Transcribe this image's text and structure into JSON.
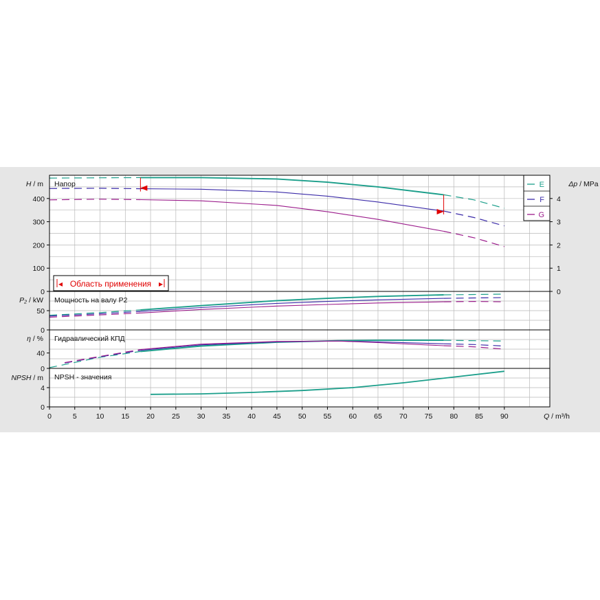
{
  "colors": {
    "E": "#1a9e8a",
    "F": "#3a2aa8",
    "G": "#9a1a8a",
    "marker": "#e00000",
    "grid": "#b8b8b8",
    "background": "#e6e6e6",
    "plot": "#ffffff"
  },
  "labels": {
    "head_axis_italic": "H",
    "head_axis_unit": " / m",
    "dp_axis_italic": "Δp",
    "dp_axis_unit": " / MPa",
    "power_axis_italic": "P₂",
    "power_axis_unit": " / kW",
    "eff_axis_italic": "η",
    "eff_axis_unit": " / %",
    "npsh_axis_italic": "NPSH",
    "npsh_axis_unit": " / m",
    "q_axis_italic": "Q",
    "q_axis_unit": " / m³/h",
    "head_title": "Напор",
    "power_title": "Мощность на валу P2",
    "eff_title": "Гидравлический КПД",
    "npsh_title": "NPSH - значения",
    "range_text": "Область применения",
    "range_left_arrow": "◂",
    "range_right_arrow": "▸"
  },
  "legend": [
    {
      "key": "E",
      "label": "E"
    },
    {
      "key": "F",
      "label": "F"
    },
    {
      "key": "G",
      "label": "G"
    }
  ],
  "chart_data": [
    {
      "type": "line",
      "title": "Напор",
      "ylabel": "H / m",
      "y2label": "Δp / MPa",
      "xlabel": "Q / m³/h",
      "xlim": [
        0,
        99
      ],
      "ylim": [
        0,
        500
      ],
      "y2lim": [
        0,
        5
      ],
      "xticks": [
        0,
        5,
        10,
        15,
        20,
        25,
        30,
        35,
        40,
        45,
        50,
        55,
        60,
        65,
        70,
        75,
        80,
        85,
        90
      ],
      "yticks": [
        0,
        100,
        200,
        300,
        400
      ],
      "yticklabels": [
        "0",
        "100",
        "200",
        "300",
        "400"
      ],
      "y2ticks": [
        0,
        1,
        2,
        3,
        4
      ],
      "y2ticklabels": [
        "0",
        "1",
        "2",
        "3",
        "4"
      ],
      "operating_range": [
        18,
        78
      ],
      "series": [
        {
          "name": "E",
          "key": "E",
          "x": [
            0,
            10,
            18,
            30,
            45,
            55,
            65,
            78,
            84,
            90
          ],
          "y": [
            488,
            489,
            490,
            490,
            484,
            470,
            450,
            416,
            394,
            358
          ]
        },
        {
          "name": "F",
          "key": "F",
          "x": [
            0,
            10,
            18,
            30,
            45,
            55,
            65,
            78,
            84,
            90
          ],
          "y": [
            443,
            444,
            442,
            440,
            428,
            410,
            385,
            346,
            318,
            282
          ]
        },
        {
          "name": "G",
          "key": "G",
          "x": [
            0,
            10,
            18,
            30,
            45,
            55,
            65,
            78,
            84,
            90
          ],
          "y": [
            394,
            397,
            395,
            390,
            370,
            343,
            310,
            259,
            231,
            193
          ]
        }
      ]
    },
    {
      "type": "line",
      "title": "Мощность на валу P2",
      "ylabel": "P₂ / kW",
      "xlim": [
        0,
        99
      ],
      "ylim": [
        0,
        100
      ],
      "yticks": [
        0,
        50
      ],
      "yticklabels": [
        "0",
        "50"
      ],
      "series": [
        {
          "name": "E",
          "key": "E",
          "x": [
            0,
            10,
            18,
            30,
            45,
            55,
            65,
            78,
            84,
            90
          ],
          "y": [
            38,
            45,
            52,
            63,
            76,
            82,
            87,
            91,
            92,
            93
          ]
        },
        {
          "name": "F",
          "key": "F",
          "x": [
            0,
            10,
            18,
            30,
            45,
            55,
            65,
            78,
            84,
            90
          ],
          "y": [
            36,
            42,
            48,
            58,
            69,
            74,
            78,
            82,
            83,
            84
          ]
        },
        {
          "name": "G",
          "key": "G",
          "x": [
            0,
            10,
            18,
            30,
            45,
            55,
            65,
            78,
            84,
            90
          ],
          "y": [
            33,
            39,
            44,
            53,
            62,
            66,
            70,
            73,
            74,
            73
          ]
        }
      ]
    },
    {
      "type": "line",
      "title": "Гидравлический КПД",
      "ylabel": "η / %",
      "xlim": [
        0,
        99
      ],
      "ylim": [
        0,
        100
      ],
      "yticks": [
        0,
        40
      ],
      "yticklabels": [
        "0",
        "40"
      ],
      "series": [
        {
          "name": "E",
          "key": "E",
          "x": [
            0,
            10,
            18,
            30,
            45,
            57,
            65,
            78,
            84,
            90
          ],
          "y": [
            2,
            29,
            44,
            58,
            68,
            72,
            73,
            73,
            72,
            71
          ]
        },
        {
          "name": "F",
          "key": "F",
          "x": [
            3,
            10,
            18,
            30,
            45,
            57,
            65,
            78,
            84,
            90
          ],
          "y": [
            14,
            30,
            47,
            61,
            69,
            71,
            69,
            64,
            62,
            58
          ]
        },
        {
          "name": "G",
          "key": "G",
          "x": [
            3,
            10,
            18,
            30,
            45,
            57,
            65,
            78,
            84,
            90
          ],
          "y": [
            15,
            31,
            49,
            63,
            70,
            71,
            67,
            59,
            56,
            50
          ]
        }
      ]
    },
    {
      "type": "line",
      "title": "NPSH - значения",
      "ylabel": "NPSH / m",
      "xlim": [
        0,
        99
      ],
      "ylim": [
        0,
        8
      ],
      "yticks": [
        0,
        4
      ],
      "yticklabels": [
        "0",
        "4"
      ],
      "series": [
        {
          "name": "E",
          "key": "E",
          "x": [
            15,
            20,
            30,
            40,
            50,
            60,
            70,
            80,
            90
          ],
          "y": [
            2.8,
            2.6,
            2.7,
            3.0,
            3.4,
            4.0,
            5.0,
            6.2,
            7.4
          ]
        }
      ]
    }
  ]
}
